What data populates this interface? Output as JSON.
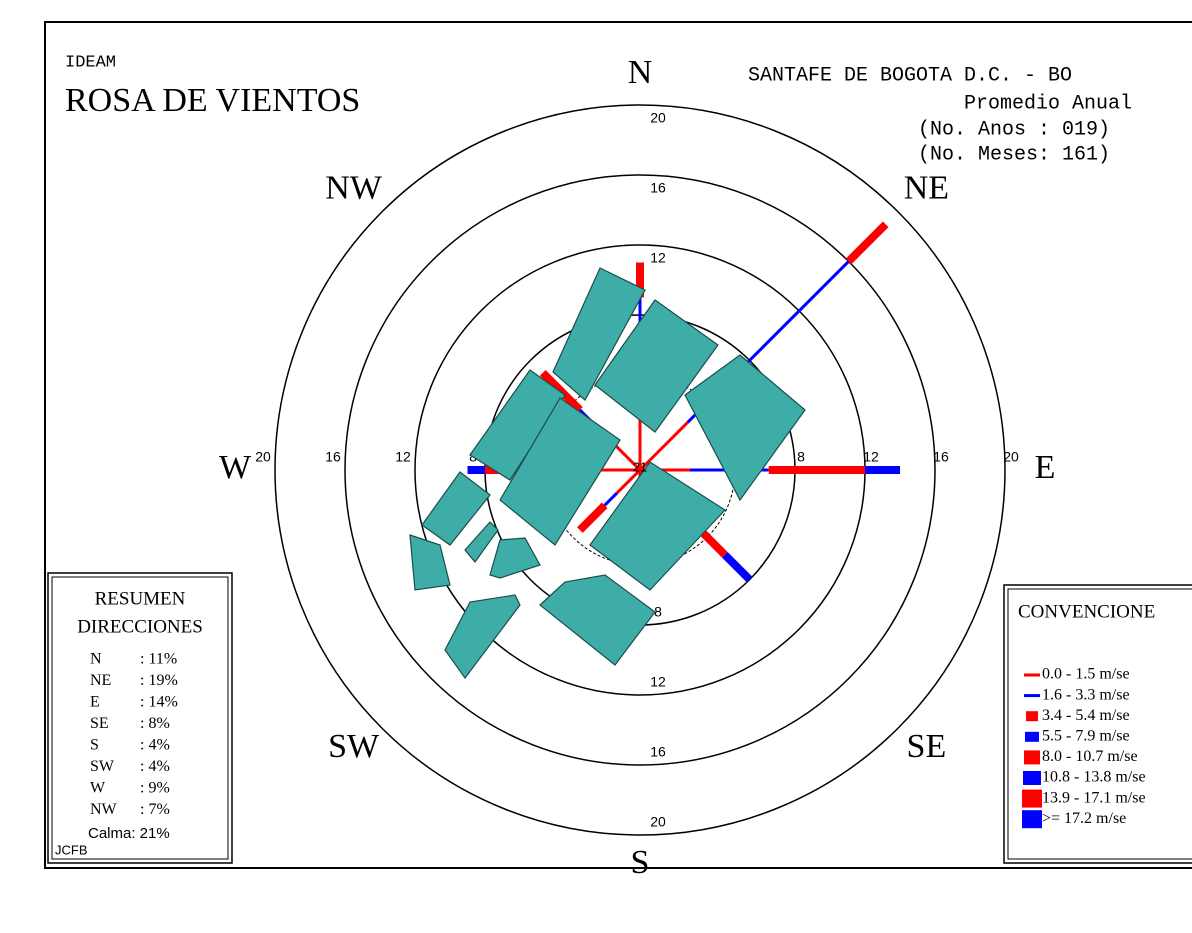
{
  "chart_data": {
    "type": "windrose",
    "agency": "IDEAM",
    "title": "ROSA DE VIENTOS",
    "station": "SANTAFE DE BOGOTA D.C. - BO",
    "subtitle": "Promedio Anual",
    "years": "(No. Anos : 019)",
    "months": "(No. Meses: 161)",
    "directions": [
      "N",
      "NE",
      "E",
      "SE",
      "S",
      "SW",
      "W",
      "NW"
    ],
    "rlim": [
      0,
      20
    ],
    "rticks": [
      8,
      12,
      16,
      20
    ],
    "calm_label": "21",
    "legend_title": "CONVENCIONE",
    "series": [
      {
        "name": "0.0 -  1.5 m/se",
        "color": "#ff0000",
        "values": [
          3,
          3,
          2,
          2,
          2,
          1,
          3,
          2
        ]
      },
      {
        "name": "1.6 -  3.3 m/se",
        "color": "#0000ff",
        "values": [
          6,
          13,
          4.5,
          2,
          2,
          1,
          0,
          2
        ]
      },
      {
        "name": "3.4 -  5.4 m/se",
        "color": "#ff0000",
        "values": [
          2,
          3,
          5.5,
          2,
          0,
          2,
          5,
          3
        ]
      },
      {
        "name": "5.5 -  7.9 m/se",
        "color": "#0000ff",
        "values": [
          0,
          0,
          2,
          2,
          0,
          0,
          1,
          0
        ]
      },
      {
        "name": "8.0 - 10.7 m/se",
        "color": "#ff0000",
        "values": [
          0,
          0,
          0,
          0,
          0,
          0,
          0,
          0
        ]
      },
      {
        "name": "10.8 - 13.8 m/se",
        "color": "#0000ff",
        "values": [
          0,
          0,
          0,
          0,
          0,
          0,
          0,
          0
        ]
      },
      {
        "name": "13.9 - 17.1 m/se",
        "color": "#ff0000",
        "values": [
          0,
          0,
          0,
          0,
          0,
          0,
          0,
          0
        ]
      },
      {
        "name": ">=  17.2 m/se",
        "color": "#0000ff",
        "values": [
          0,
          0,
          0,
          0,
          0,
          0,
          0,
          0
        ]
      }
    ],
    "summary": {
      "title1": "RESUMEN",
      "title2": "DIRECCIONES",
      "rows": [
        [
          "N",
          ": 11%"
        ],
        [
          "NE",
          ": 19%"
        ],
        [
          "E",
          ": 14%"
        ],
        [
          "SE",
          ": 8%"
        ],
        [
          "S",
          ": 4%"
        ],
        [
          "SW",
          ": 4%"
        ],
        [
          "W",
          ": 9%"
        ],
        [
          "NW",
          ": 7%"
        ]
      ],
      "calm": "Calma: 21%",
      "author": "JCFB"
    }
  }
}
